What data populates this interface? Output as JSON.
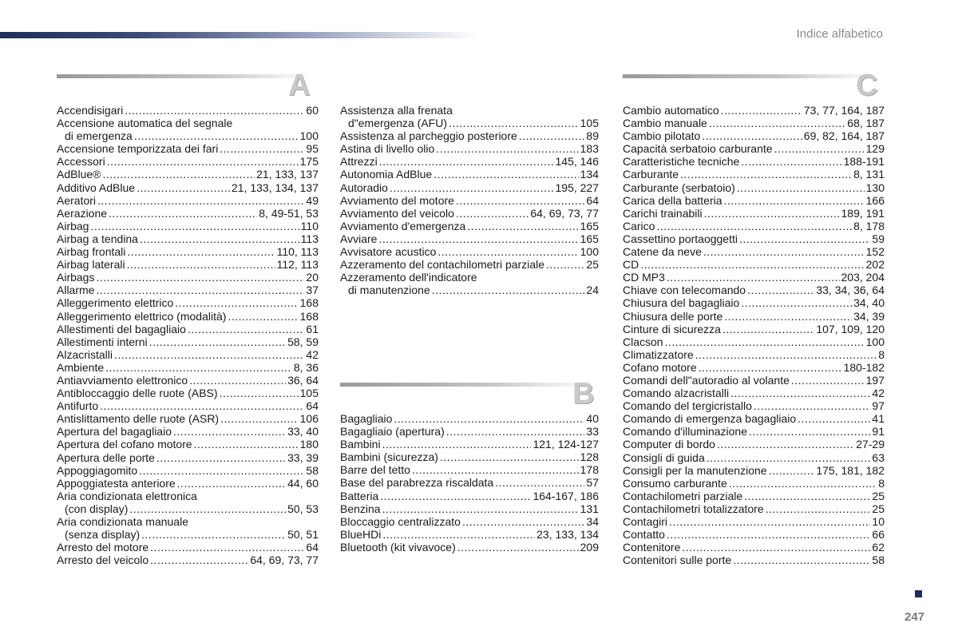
{
  "header": {
    "title": "Indice alfabetico"
  },
  "page_number": "247",
  "sections": {
    "A": {
      "letter": "A",
      "col1": [
        {
          "term": "Accendisigari",
          "pages": "60"
        },
        {
          "text": "Accensione automatica del segnale"
        },
        {
          "term": "di emergenza",
          "pages": "100",
          "indent": true
        },
        {
          "term": "Accensione temporizzata dei fari",
          "pages": "95"
        },
        {
          "term": "Accessori",
          "pages": "175"
        },
        {
          "term": "AdBlue®",
          "pages": "21, 133, 137"
        },
        {
          "term": "Additivo AdBlue",
          "pages": "21, 133, 134, 137"
        },
        {
          "term": "Aeratori",
          "pages": "49"
        },
        {
          "term": "Aerazione",
          "pages": "8, 49-51, 53"
        },
        {
          "term": "Airbag",
          "pages": "110"
        },
        {
          "term": "Airbag a tendina",
          "pages": "113"
        },
        {
          "term": "Airbag frontali",
          "pages": "110, 113"
        },
        {
          "term": "Airbag laterali",
          "pages": "112, 113"
        },
        {
          "term": "Airbags",
          "pages": "20"
        },
        {
          "term": "Allarme",
          "pages": "37"
        },
        {
          "term": "Alleggerimento elettrico",
          "pages": "168"
        },
        {
          "term": "Alleggerimento elettrico (modalità)",
          "pages": "168"
        },
        {
          "term": "Allestimenti del bagagliaio",
          "pages": "61"
        },
        {
          "term": "Allestimenti interni",
          "pages": "58, 59"
        },
        {
          "term": "Alzacristalli",
          "pages": "42"
        },
        {
          "term": "Ambiente",
          "pages": "8, 36"
        },
        {
          "term": "Antiavviamento elettronico",
          "pages": "36, 64"
        },
        {
          "term": "Antibloccaggio delle ruote (ABS)",
          "pages": "105"
        },
        {
          "term": "Antifurto",
          "pages": "64"
        },
        {
          "term": "Antislittamento delle ruote (ASR)",
          "pages": "106"
        },
        {
          "term": "Apertura del bagagliaio",
          "pages": "33, 40"
        },
        {
          "term": "Apertura del cofano motore",
          "pages": "180"
        },
        {
          "term": "Apertura delle porte",
          "pages": "33, 39"
        },
        {
          "term": "Appoggiagomito",
          "pages": "58"
        },
        {
          "term": "Appoggiatesta anteriore",
          "pages": "44, 60"
        },
        {
          "text": "Aria condizionata elettronica"
        },
        {
          "term": "(con display)",
          "pages": "50, 53",
          "indent": true
        },
        {
          "text": "Aria condizionata manuale"
        },
        {
          "term": "(senza display)",
          "pages": "50, 51",
          "indent": true
        },
        {
          "term": "Arresto del motore",
          "pages": "64"
        },
        {
          "term": "Arresto del veicolo",
          "pages": "64, 69, 73, 77"
        }
      ],
      "col2": [
        {
          "text": "Assistenza alla frenata"
        },
        {
          "term": "d\"emergenza (AFU)",
          "pages": "105",
          "indent": true
        },
        {
          "term": "Assistenza al parcheggio posteriore",
          "pages": "89"
        },
        {
          "term": "Astina di livello olio",
          "pages": "183"
        },
        {
          "term": "Attrezzi",
          "pages": "145, 146"
        },
        {
          "term": "Autonomia AdBlue",
          "pages": "134"
        },
        {
          "term": "Autoradio",
          "pages": "195, 227"
        },
        {
          "term": "Avviamento del motore",
          "pages": "64"
        },
        {
          "term": "Avviamento del veicolo",
          "pages": "64, 69, 73, 77"
        },
        {
          "term": "Avviamento d'emergenza",
          "pages": "165"
        },
        {
          "term": "Avviare",
          "pages": "165"
        },
        {
          "term": "Avvisatore acustico",
          "pages": "100"
        },
        {
          "term": "Azzeramento del contachilometri parziale",
          "pages": "25"
        },
        {
          "text": "Azzeramento dell'indicatore"
        },
        {
          "term": "di manutenzione",
          "pages": "24",
          "indent": true
        }
      ]
    },
    "B": {
      "letter": "B",
      "entries": [
        {
          "term": "Bagagliaio",
          "pages": "40"
        },
        {
          "term": "Bagagliaio (apertura)",
          "pages": "33"
        },
        {
          "term": "Bambini",
          "pages": "121, 124-127"
        },
        {
          "term": "Bambini (sicurezza)",
          "pages": "128"
        },
        {
          "term": "Barre del tetto",
          "pages": "178"
        },
        {
          "term": "Base del parabrezza riscaldata",
          "pages": "57"
        },
        {
          "term": "Batteria",
          "pages": "164-167, 186"
        },
        {
          "term": "Benzina",
          "pages": "131"
        },
        {
          "term": "Bloccaggio centralizzato",
          "pages": "34"
        },
        {
          "term": "BlueHDi",
          "pages": "23, 133, 134"
        },
        {
          "term": "Bluetooth (kit vivavoce)",
          "pages": "209"
        }
      ]
    },
    "C": {
      "letter": "C",
      "entries": [
        {
          "term": "Cambio automatico",
          "pages": "73, 77, 164, 187"
        },
        {
          "term": "Cambio manuale",
          "pages": "68, 187"
        },
        {
          "term": "Cambio pilotato",
          "pages": "69, 82, 164, 187"
        },
        {
          "term": "Capacità serbatoio carburante",
          "pages": "129"
        },
        {
          "term": "Caratteristiche tecniche",
          "pages": "188-191"
        },
        {
          "term": "Carburante",
          "pages": "8, 131"
        },
        {
          "term": "Carburante (serbatoio)",
          "pages": "130"
        },
        {
          "term": "Carica della batteria",
          "pages": "166"
        },
        {
          "term": "Carichi trainabili",
          "pages": "189, 191"
        },
        {
          "term": "Carico",
          "pages": "8, 178"
        },
        {
          "term": "Cassettino portaoggetti",
          "pages": "59"
        },
        {
          "term": "Catene da neve",
          "pages": "152"
        },
        {
          "term": "CD",
          "pages": "202"
        },
        {
          "term": "CD MP3",
          "pages": "203, 204"
        },
        {
          "term": "Chiave con telecomando",
          "pages": "33, 34, 36, 64"
        },
        {
          "term": "Chiusura del bagagliaio",
          "pages": "34, 40"
        },
        {
          "term": "Chiusura delle porte",
          "pages": "34, 39"
        },
        {
          "term": "Cinture di sicurezza",
          "pages": "107, 109, 120"
        },
        {
          "term": "Clacson",
          "pages": "100"
        },
        {
          "term": "Climatizzatore",
          "pages": "8"
        },
        {
          "term": "Cofano motore",
          "pages": "180-182"
        },
        {
          "term": "Comandi dell\"autoradio al volante",
          "pages": "197"
        },
        {
          "term": "Comando alzacristalli",
          "pages": "42"
        },
        {
          "term": "Comando del tergicristallo",
          "pages": "97"
        },
        {
          "term": "Comando di emergenza bagagliaio",
          "pages": "41"
        },
        {
          "term": "Comando d'illuminazione",
          "pages": "91"
        },
        {
          "term": "Computer di bordo",
          "pages": "27-29"
        },
        {
          "term": "Consigli di guida",
          "pages": "63"
        },
        {
          "term": "Consigli per la manutenzione",
          "pages": "175, 181, 182"
        },
        {
          "term": "Consumo carburante",
          "pages": "8"
        },
        {
          "term": "Contachilometri parziale",
          "pages": "25"
        },
        {
          "term": "Contachilometri totalizzatore",
          "pages": "25"
        },
        {
          "term": "Contagiri",
          "pages": "10"
        },
        {
          "term": "Contatto",
          "pages": "66"
        },
        {
          "term": "Contenitore",
          "pages": "62"
        },
        {
          "term": "Contenitori sulle porte",
          "pages": "58"
        }
      ]
    }
  }
}
